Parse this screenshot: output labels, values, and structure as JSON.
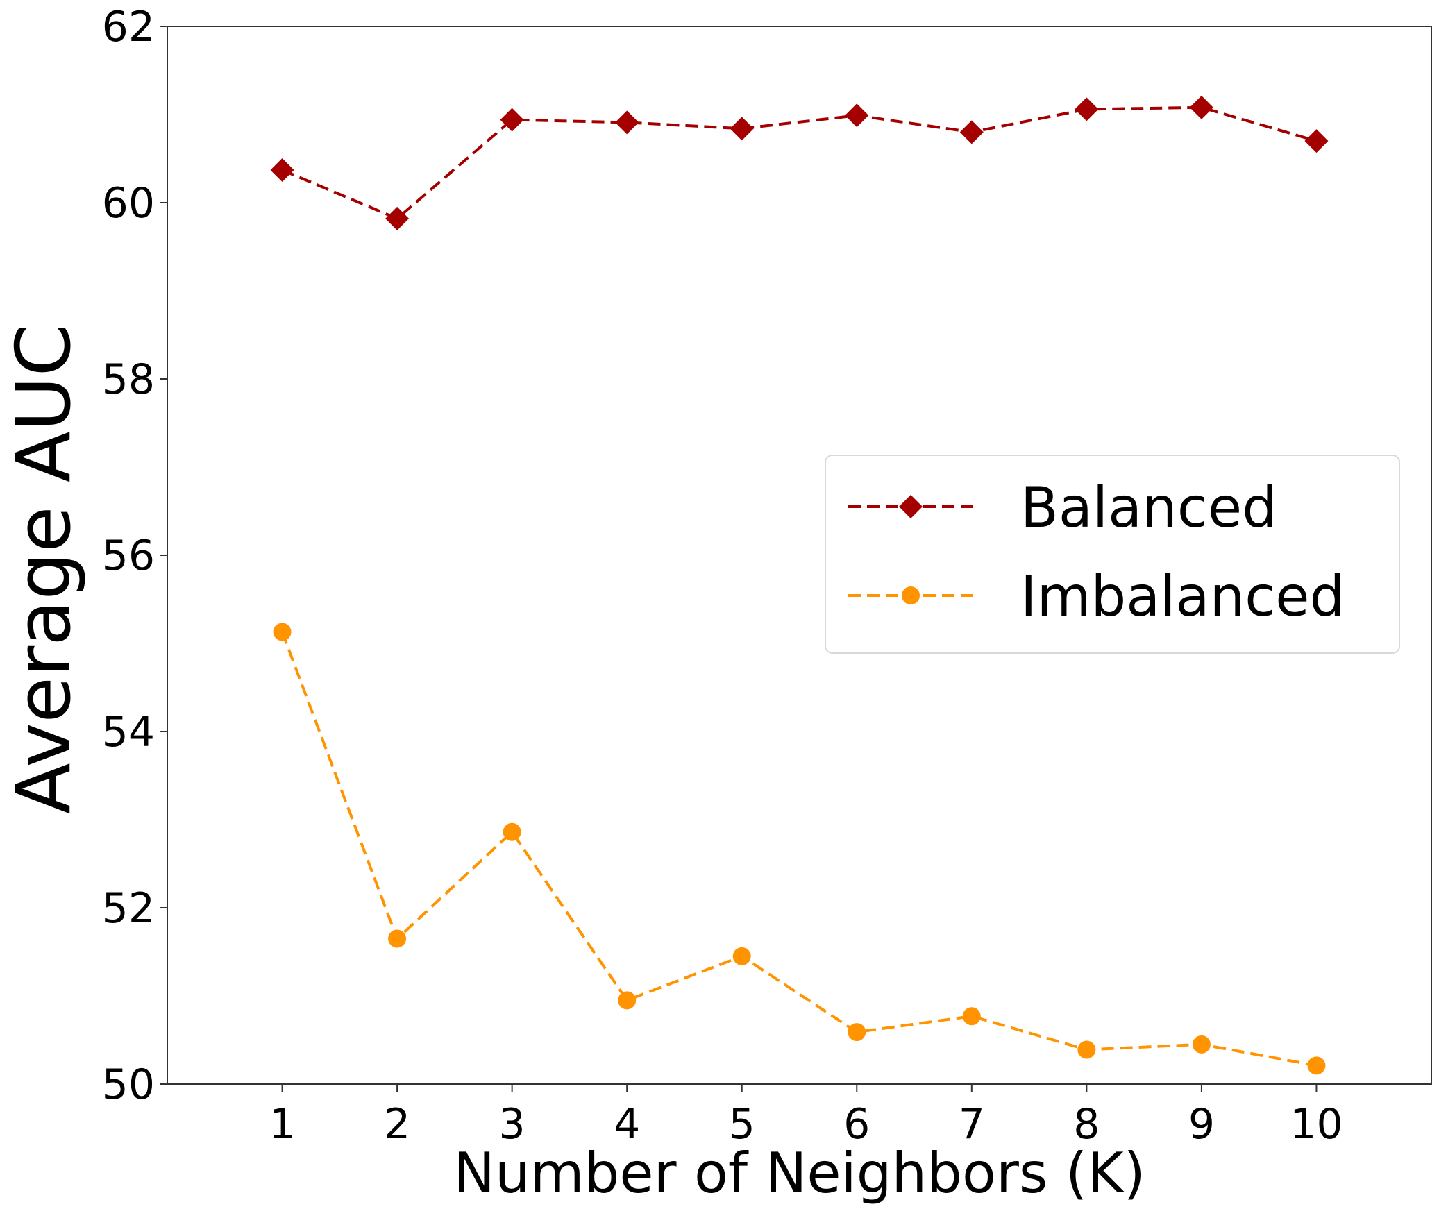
{
  "chart_data": {
    "type": "line",
    "title": "",
    "xlabel": "Number of Neighbors (K)",
    "ylabel": "Average AUC",
    "x": [
      1,
      2,
      3,
      4,
      5,
      6,
      7,
      8,
      9,
      10
    ],
    "xlim": [
      0,
      11
    ],
    "ylim": [
      50,
      62
    ],
    "xticks": [
      1,
      2,
      3,
      4,
      5,
      6,
      7,
      8,
      9,
      10
    ],
    "yticks": [
      50,
      52,
      54,
      56,
      58,
      60,
      62
    ],
    "grid": false,
    "legend_position": "center-right",
    "series": [
      {
        "name": "Balanced",
        "color": "#a50000",
        "marker": "diamond",
        "linestyle": "dashed",
        "values": [
          60.37,
          59.82,
          60.94,
          60.91,
          60.84,
          60.99,
          60.8,
          61.06,
          61.08,
          60.7
        ]
      },
      {
        "name": "Imbalanced",
        "color": "#ff9400",
        "marker": "circle",
        "linestyle": "dashed",
        "values": [
          55.13,
          51.65,
          52.86,
          50.95,
          51.45,
          50.59,
          50.77,
          50.39,
          50.45,
          50.21
        ]
      }
    ]
  }
}
